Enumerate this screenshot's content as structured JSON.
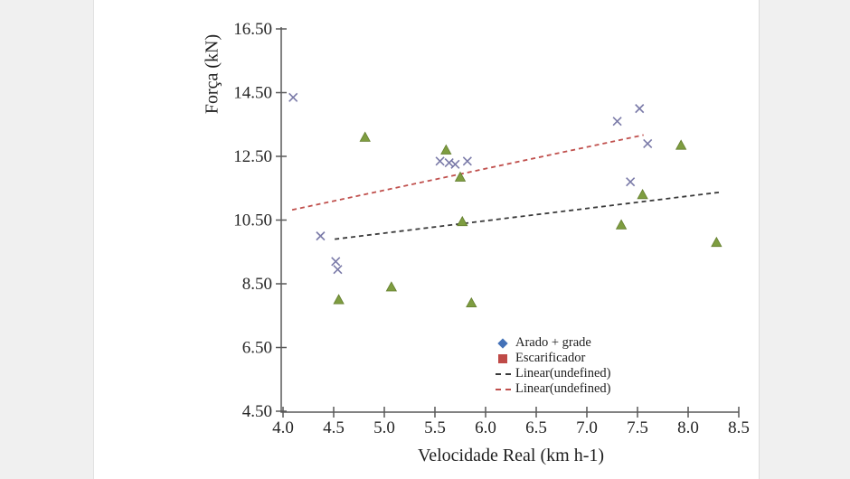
{
  "page": {
    "background_color": "#f0f0f0",
    "panel_color": "#ffffff"
  },
  "chart_data": {
    "type": "scatter",
    "title": "",
    "xlabel": "Velocidade Real (km h-1)",
    "ylabel": "Força (kN)",
    "xlim": [
      4.0,
      8.5
    ],
    "ylim": [
      4.5,
      16.5
    ],
    "grid": false,
    "axis_color": "#595959",
    "tick_label_color": "#262626",
    "x_tick_values": [
      4.0,
      4.5,
      5.0,
      5.5,
      6.0,
      6.5,
      7.0,
      7.5,
      8.0,
      8.5
    ],
    "x_tick_labels": [
      "4.0",
      "4.5",
      "5.0",
      "5.5",
      "6.0",
      "6.5",
      "7.0",
      "7.5",
      "8.0",
      "8.5"
    ],
    "y_tick_values": [
      16.5,
      14.5,
      12.5,
      10.5,
      8.5,
      6.5,
      4.5
    ],
    "y_tick_labels": [
      "16.50",
      "14.50",
      "12.50",
      "10.50",
      "8.50",
      "6.50",
      "4.50"
    ],
    "series": [
      {
        "name": "Arado + grade",
        "marker": "x-cross",
        "color": "#6b6b9e",
        "points": [
          [
            4.1,
            14.35
          ],
          [
            4.37,
            10.0
          ],
          [
            4.52,
            9.2
          ],
          [
            4.54,
            8.95
          ],
          [
            5.55,
            12.35
          ],
          [
            5.64,
            12.3
          ],
          [
            5.7,
            12.25
          ],
          [
            5.82,
            12.35
          ],
          [
            7.3,
            13.6
          ],
          [
            7.43,
            11.7
          ],
          [
            7.52,
            14.0
          ],
          [
            7.6,
            12.9
          ]
        ]
      },
      {
        "name": "Escarificador",
        "marker": "triangle",
        "color": "#7e9d40",
        "edge_color": "#637d2e",
        "points": [
          [
            4.55,
            8.0
          ],
          [
            4.81,
            13.1
          ],
          [
            5.07,
            8.4
          ],
          [
            5.61,
            12.7
          ],
          [
            5.75,
            11.85
          ],
          [
            5.77,
            10.45
          ],
          [
            5.86,
            7.9
          ],
          [
            7.34,
            10.35
          ],
          [
            7.55,
            11.3
          ],
          [
            7.93,
            12.85
          ],
          [
            8.28,
            9.8
          ]
        ]
      }
    ],
    "trendlines": [
      {
        "name": "Linear(undefined)",
        "color": "#3a3a3a",
        "from": [
          4.51,
          9.9
        ],
        "to": [
          8.33,
          11.38
        ]
      },
      {
        "name": "Linear(undefined)",
        "color": "#c0504d",
        "from": [
          4.09,
          10.82
        ],
        "to": [
          7.56,
          13.17
        ]
      }
    ],
    "legend": {
      "position": "inside-bottom-center-right",
      "items": [
        {
          "label": "Arado + grade",
          "marker": "diamond",
          "color": "#4472b8"
        },
        {
          "label": "Escarificador",
          "marker": "square",
          "color": "#bf4a47"
        },
        {
          "label": "Linear(undefined)",
          "marker": "dashed-line",
          "color": "#3a3a3a"
        },
        {
          "label": "Linear(undefined)",
          "marker": "dashed-line",
          "color": "#c0504d"
        }
      ]
    }
  }
}
